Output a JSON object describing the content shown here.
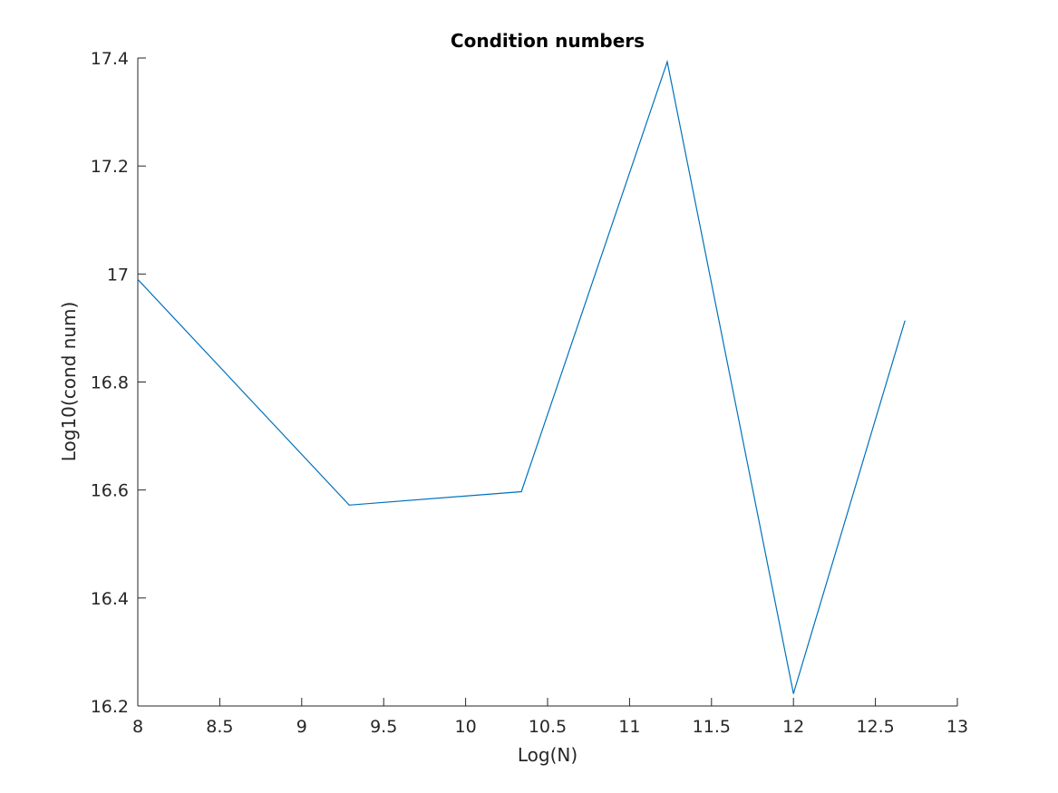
{
  "chart_data": {
    "type": "line",
    "title": "Condition numbers",
    "xlabel": "Log(N)",
    "ylabel": "Log10(cond num)",
    "xlim": [
      8,
      13
    ],
    "ylim": [
      16.2,
      17.4
    ],
    "xticks": [
      8,
      8.5,
      9,
      9.5,
      10,
      10.5,
      11,
      11.5,
      12,
      12.5,
      13
    ],
    "xtick_labels": [
      "8",
      "8.5",
      "9",
      "9.5",
      "10",
      "10.5",
      "11",
      "11.5",
      "12",
      "12.5",
      "13"
    ],
    "yticks": [
      16.2,
      16.4,
      16.6,
      16.8,
      17,
      17.2,
      17.4
    ],
    "ytick_labels": [
      "16.2",
      "16.4",
      "16.6",
      "16.8",
      "17",
      "17.2",
      "17.4"
    ],
    "grid": false,
    "series": [
      {
        "color": "#0072BD",
        "x": [
          8.0,
          9.29,
          10.34,
          11.23,
          12.0,
          12.68
        ],
        "y": [
          16.99,
          16.572,
          16.597,
          17.393,
          16.223,
          16.913
        ]
      }
    ]
  }
}
